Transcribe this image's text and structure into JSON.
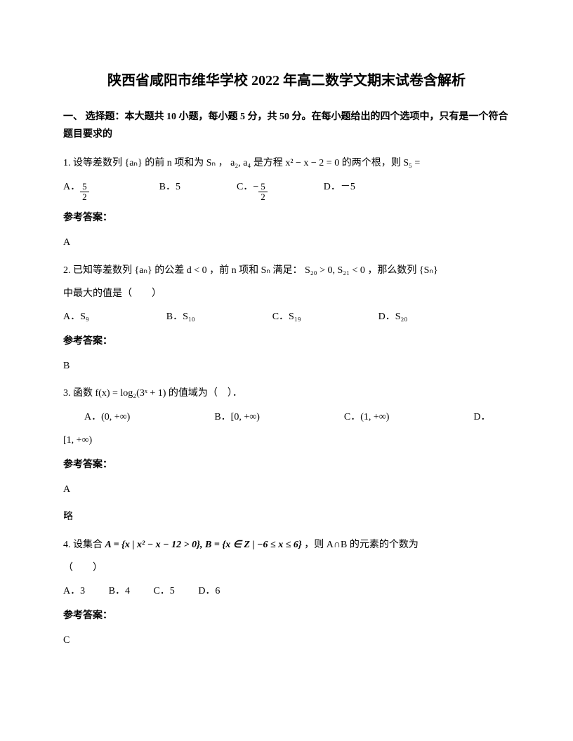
{
  "title": "陕西省咸阳市维华学校 2022 年高二数学文期末试卷含解析",
  "section_header": "一、 选择题：本大题共 10 小题，每小题 5 分，共 50 分。在每小题给出的四个选项中，只有是一个符合题目要求的",
  "q1": {
    "text_pre": "1. 设等差数列",
    "seq": "{aₙ}",
    "text_mid1": " 的前 n 项和为 ",
    "sn": "Sₙ",
    "text_mid2": "，",
    "terms": "a₂, a₄",
    "text_mid3": " 是方程 ",
    "equation": "x² − x − 2 = 0",
    "text_mid4": " 的两个根，则 ",
    "s5": "S₅",
    "text_end": " =",
    "opt_a_label": "A．",
    "opt_a_num": "5",
    "opt_a_den": "2",
    "opt_b": "B．5",
    "opt_c_label": "C．",
    "opt_c_neg": "−",
    "opt_c_num": "5",
    "opt_c_den": "2",
    "opt_d": "D．－5",
    "answer_label": "参考答案：",
    "answer": "A"
  },
  "q2": {
    "text_pre": "2. 已知等差数列 ",
    "seq": "{aₙ}",
    "text_mid1": " 的公差 ",
    "cond1": "d < 0",
    "text_mid2": "，前 ",
    "n": "n",
    "text_mid3": " 项和 ",
    "sn": "Sₙ",
    "text_mid4": " 满足：",
    "cond2": "S₂₀ > 0, S₂₁ < 0",
    "text_mid5": "，那么数列 ",
    "seq2": "{Sₙ}",
    "text_line2": "中最大的值是（　　）",
    "opt_a": "A．",
    "opt_a_val": "S₉",
    "opt_b": "B．",
    "opt_b_val": "S₁₀",
    "opt_c": "C．",
    "opt_c_val": "S₁₉",
    "opt_d": "D．",
    "opt_d_val": "S₂₀",
    "answer_label": "参考答案：",
    "answer": "B"
  },
  "q3": {
    "text_pre": "3. 函数 ",
    "func": "f(x) = log₂(3ˣ + 1)",
    "text_end": " 的值域为（　）．",
    "opt_a": "A．",
    "opt_a_val": "(0, +∞)",
    "opt_b": "B．",
    "opt_b_val": "[0, +∞)",
    "opt_c": "C．",
    "opt_c_val": "(1, +∞)",
    "opt_d": "D．",
    "opt_d_val": "[1, +∞)",
    "answer_label": "参考答案：",
    "answer": "A",
    "extra": "略"
  },
  "q4": {
    "text_pre": "4. 设集合 ",
    "setA": "A = {x | x² − x − 12 > 0}, B = {x ∈ Z | −6 ≤ x ≤ 6}",
    "text_mid": "，则 A∩B 的元素的个数为",
    "text_line2": "（　　）",
    "opt_a": "A．3",
    "opt_b": "B．4",
    "opt_c": "C．5",
    "opt_d": "D．6",
    "answer_label": "参考答案：",
    "answer": "C"
  }
}
